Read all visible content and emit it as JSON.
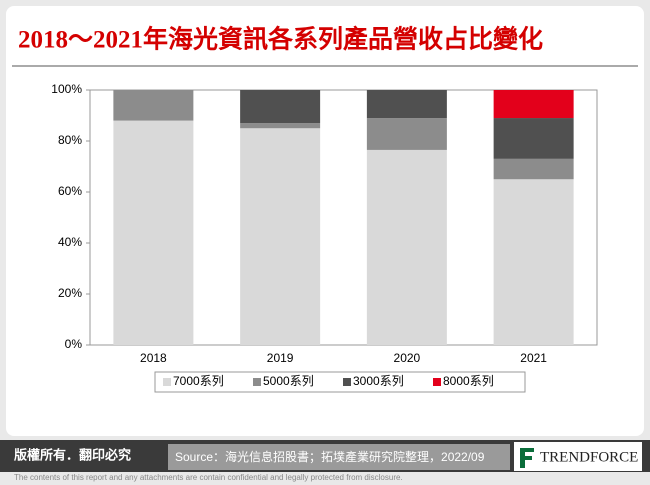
{
  "chart_data": {
    "type": "stacked_bar",
    "title": "2018～2021年海光資訊各系列產品營收占比變化",
    "categories": [
      "2018",
      "2019",
      "2020",
      "2021"
    ],
    "series": [
      {
        "name": "7000系列",
        "color": "#d9d9d9",
        "values": [
          88,
          85,
          76.5,
          65
        ]
      },
      {
        "name": "5000系列",
        "color": "#8c8c8c",
        "values": [
          12,
          2,
          12.5,
          8
        ]
      },
      {
        "name": "3000系列",
        "color": "#505050",
        "values": [
          0,
          13,
          11,
          16
        ]
      },
      {
        "name": "8000系列",
        "color": "#e3001b",
        "values": [
          0,
          0,
          0,
          11
        ]
      }
    ],
    "ylim": [
      0,
      100
    ],
    "yticks": [
      {
        "value": 0,
        "label": "0%"
      },
      {
        "value": 20,
        "label": "20%"
      },
      {
        "value": 40,
        "label": "40%"
      },
      {
        "value": 60,
        "label": "60%"
      },
      {
        "value": 80,
        "label": "80%"
      },
      {
        "value": 100,
        "label": "100%"
      }
    ]
  },
  "footer": {
    "copyright": "版權所有．翻印必究",
    "source": "Source：海光信息招股書；拓墣產業研究院整理，2022/09",
    "logo": "TRENDFORCE",
    "disclaimer": "The contents of this report and any attachments are contain confidential and legally protected from disclosure."
  }
}
